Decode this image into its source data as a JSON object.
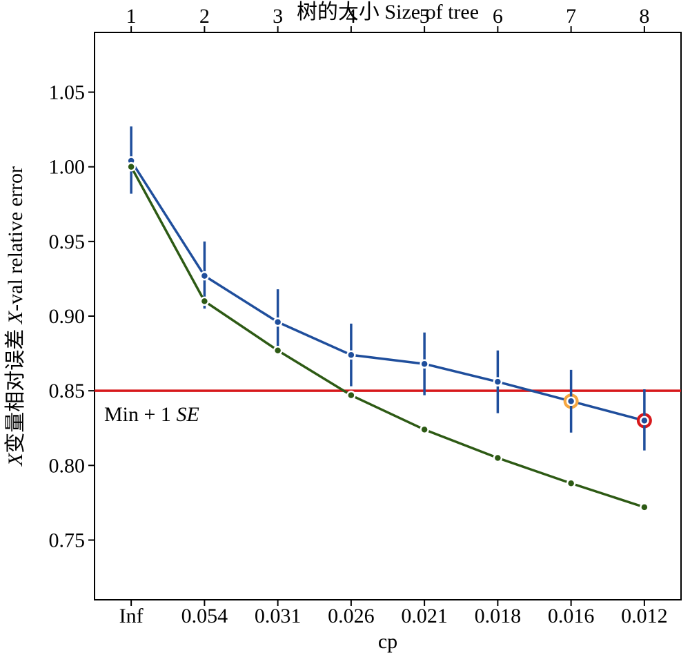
{
  "chart_data": {
    "type": "line",
    "top_axis_label": "树的大小 Size of tree",
    "x_top_ticks": [
      "1",
      "2",
      "3",
      "4",
      "5",
      "6",
      "7",
      "8"
    ],
    "xlabel": "cp",
    "x_bottom_ticks": [
      "Inf",
      "0.054",
      "0.031",
      "0.026",
      "0.021",
      "0.018",
      "0.016",
      "0.012"
    ],
    "ylabel_prefix": "X",
    "ylabel_rest": "变量相对误差 ",
    "ylabel_italic": "X",
    "ylabel_suffix": "-val relative error",
    "ylim": [
      0.71,
      1.09
    ],
    "y_ticks": [
      0.75,
      0.8,
      0.85,
      0.9,
      0.95,
      1.0,
      1.05
    ],
    "y_tick_labels": [
      "0.75",
      "0.80",
      "0.85",
      "0.90",
      "0.95",
      "1.00",
      "1.05"
    ],
    "series": [
      {
        "color": "#1f4e9c",
        "values": [
          1.004,
          0.927,
          0.896,
          0.874,
          0.868,
          0.856,
          0.843,
          0.83
        ],
        "error_lower": [
          0.982,
          0.905,
          0.874,
          0.853,
          0.847,
          0.835,
          0.822,
          0.81
        ],
        "error_upper": [
          1.027,
          0.95,
          0.918,
          0.895,
          0.889,
          0.877,
          0.864,
          0.851
        ]
      },
      {
        "color": "#2d5a14",
        "values": [
          1.0,
          0.91,
          0.877,
          0.847,
          0.824,
          0.805,
          0.788,
          0.772
        ]
      }
    ],
    "threshold": {
      "value": 0.85,
      "color": "#d7191c",
      "label_text": "Min + 1 ",
      "label_italic": "SE"
    },
    "highlights": [
      {
        "index": 6,
        "color": "#f5a742"
      },
      {
        "index": 7,
        "color": "#d7191c"
      }
    ],
    "grid": false
  }
}
